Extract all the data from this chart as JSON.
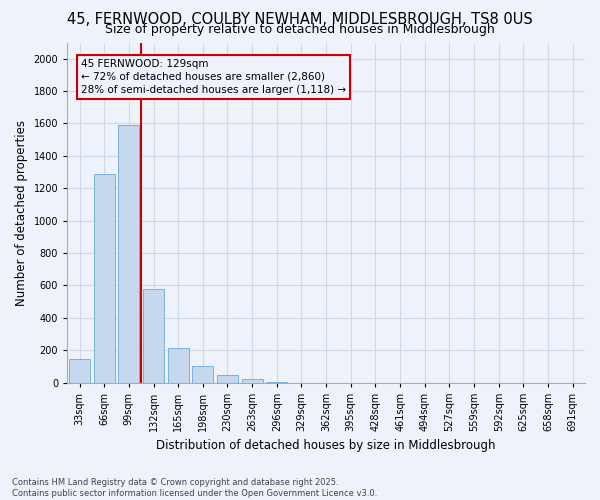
{
  "title1": "45, FERNWOOD, COULBY NEWHAM, MIDDLESBROUGH, TS8 0US",
  "title2": "Size of property relative to detached houses in Middlesbrough",
  "xlabel": "Distribution of detached houses by size in Middlesbrough",
  "ylabel": "Number of detached properties",
  "categories": [
    "33sqm",
    "66sqm",
    "99sqm",
    "132sqm",
    "165sqm",
    "198sqm",
    "230sqm",
    "263sqm",
    "296sqm",
    "329sqm",
    "362sqm",
    "395sqm",
    "428sqm",
    "461sqm",
    "494sqm",
    "527sqm",
    "559sqm",
    "592sqm",
    "625sqm",
    "658sqm",
    "691sqm"
  ],
  "values": [
    145,
    1290,
    1590,
    580,
    215,
    100,
    50,
    20,
    5,
    0,
    0,
    0,
    0,
    0,
    0,
    0,
    0,
    0,
    0,
    0,
    0
  ],
  "bar_color": "#c5d8ee",
  "bar_edge_color": "#6aaad4",
  "vline_color": "#cc0000",
  "vline_position": 2.5,
  "annotation_text": "45 FERNWOOD: 129sqm\n← 72% of detached houses are smaller (2,860)\n28% of semi-detached houses are larger (1,118) →",
  "annotation_box_color": "#cc0000",
  "annotation_bg": "#eef2fa",
  "ylim": [
    0,
    2100
  ],
  "yticks": [
    0,
    200,
    400,
    600,
    800,
    1000,
    1200,
    1400,
    1600,
    1800,
    2000
  ],
  "footer1": "Contains HM Land Registry data © Crown copyright and database right 2025.",
  "footer2": "Contains public sector information licensed under the Open Government Licence v3.0.",
  "bg_color": "#eef2fa",
  "grid_color": "#d0d8e8",
  "title1_fontsize": 10.5,
  "title2_fontsize": 9,
  "axis_label_fontsize": 8.5,
  "tick_fontsize": 7,
  "footer_fontsize": 6,
  "annotation_fontsize": 7.5
}
